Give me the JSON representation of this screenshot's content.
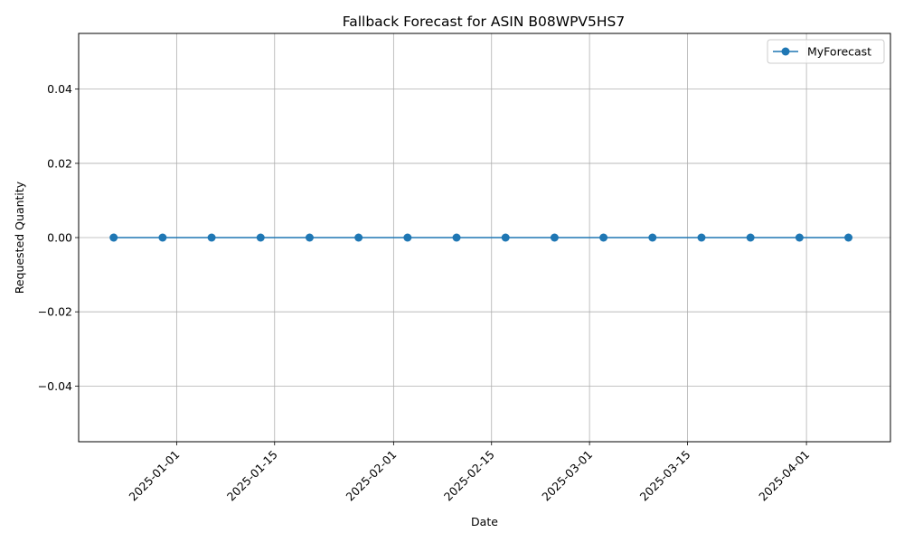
{
  "chart_data": {
    "type": "line",
    "title": "Fallback Forecast for ASIN B08WPV5HS7",
    "xlabel": "Date",
    "ylabel": "Requested Quantity",
    "x_ticks": [
      "2025-01-01",
      "2025-01-15",
      "2025-02-01",
      "2025-02-15",
      "2025-03-01",
      "2025-03-15",
      "2025-04-01"
    ],
    "y_ticks": [
      -0.04,
      -0.02,
      0.0,
      0.02,
      0.04
    ],
    "y_tick_labels": [
      "−0.04",
      "−0.02",
      "0.00",
      "0.02",
      "0.04"
    ],
    "xlim": [
      "2024-12-18",
      "2025-04-13"
    ],
    "ylim": [
      -0.055,
      0.055
    ],
    "grid": true,
    "legend": "top-right",
    "series": [
      {
        "name": "MyForecast",
        "color": "#1f77b4",
        "marker": "circle",
        "x": [
          "2024-12-23",
          "2024-12-30",
          "2025-01-06",
          "2025-01-13",
          "2025-01-20",
          "2025-01-27",
          "2025-02-03",
          "2025-02-10",
          "2025-02-17",
          "2025-02-24",
          "2025-03-03",
          "2025-03-10",
          "2025-03-17",
          "2025-03-24",
          "2025-03-31",
          "2025-04-07"
        ],
        "y": [
          0,
          0,
          0,
          0,
          0,
          0,
          0,
          0,
          0,
          0,
          0,
          0,
          0,
          0,
          0,
          0
        ]
      }
    ]
  }
}
